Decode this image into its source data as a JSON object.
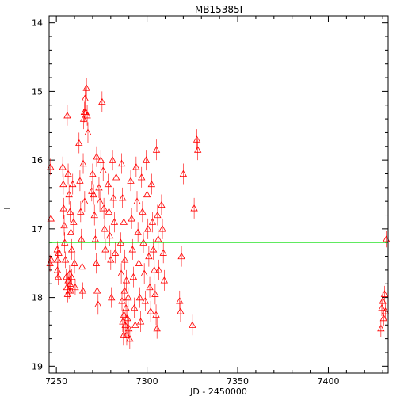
{
  "chart_data": {
    "type": "scatter",
    "title": "MB15385I",
    "xlabel": "JD - 2450000",
    "ylabel": "I",
    "xlim": [
      7246,
      7433
    ],
    "ylim": [
      19.1,
      13.9
    ],
    "y_inverted": true,
    "grid": false,
    "x_ticks": [
      7250,
      7300,
      7350,
      7400
    ],
    "y_ticks": [
      14,
      15,
      16,
      17,
      18,
      19
    ],
    "x_minor_step": 10,
    "y_minor_step": 0.2,
    "reference_line": {
      "y": 17.2,
      "color": "#00dd00"
    },
    "marker": "triangle-open",
    "point_color": "#ff0000",
    "series": [
      {
        "points": [
          [
            7246.5,
            17.5,
            0.12
          ],
          [
            7247.0,
            16.85,
            0.12
          ],
          [
            7246.8,
            16.1,
            0.12
          ],
          [
            7247.2,
            17.45,
            0.12
          ],
          [
            7250.5,
            17.3,
            0.12
          ],
          [
            7250.8,
            17.45,
            0.12
          ],
          [
            7251.0,
            17.7,
            0.12
          ],
          [
            7251.3,
            17.35,
            0.12
          ],
          [
            7250.6,
            17.6,
            0.12
          ],
          [
            7253.5,
            16.1,
            0.15
          ],
          [
            7253.8,
            16.35,
            0.15
          ],
          [
            7254.0,
            16.7,
            0.15
          ],
          [
            7254.3,
            16.95,
            0.15
          ],
          [
            7254.6,
            17.2,
            0.15
          ],
          [
            7255.0,
            17.45,
            0.12
          ],
          [
            7255.5,
            17.7,
            0.12
          ],
          [
            7255.8,
            17.85,
            0.12
          ],
          [
            7256.2,
            17.95,
            0.12
          ],
          [
            7256.5,
            17.75,
            0.12
          ],
          [
            7257.0,
            17.9,
            0.12
          ],
          [
            7257.3,
            17.65,
            0.12
          ],
          [
            7257.6,
            17.8,
            0.12
          ],
          [
            7258.0,
            17.9,
            0.12
          ],
          [
            7258.4,
            17.7,
            0.12
          ],
          [
            7256.0,
            15.35,
            0.15
          ],
          [
            7256.5,
            16.2,
            0.15
          ],
          [
            7257.0,
            16.5,
            0.15
          ],
          [
            7257.5,
            16.75,
            0.15
          ],
          [
            7258.0,
            17.05,
            0.15
          ],
          [
            7258.5,
            17.3,
            0.15
          ],
          [
            7259.0,
            16.35,
            0.15
          ],
          [
            7259.5,
            16.9,
            0.15
          ],
          [
            7260.0,
            17.5,
            0.15
          ],
          [
            7260.4,
            17.85,
            0.12
          ],
          [
            7262.5,
            15.75,
            0.15
          ],
          [
            7263.0,
            16.3,
            0.15
          ],
          [
            7263.4,
            16.75,
            0.15
          ],
          [
            7263.8,
            17.15,
            0.15
          ],
          [
            7264.2,
            17.55,
            0.15
          ],
          [
            7264.6,
            17.9,
            0.12
          ],
          [
            7265.0,
            15.4,
            0.15
          ],
          [
            7265.4,
            15.3,
            0.15
          ],
          [
            7265.8,
            15.1,
            0.15
          ],
          [
            7266.2,
            15.3,
            0.15
          ],
          [
            7266.6,
            14.95,
            0.15
          ],
          [
            7267.0,
            15.35,
            0.15
          ],
          [
            7267.4,
            15.6,
            0.15
          ],
          [
            7264.8,
            16.05,
            0.15
          ],
          [
            7265.6,
            16.6,
            0.15
          ],
          [
            7269.5,
            16.45,
            0.15
          ],
          [
            7270.0,
            16.2,
            0.15
          ],
          [
            7270.5,
            16.5,
            0.15
          ],
          [
            7271.0,
            16.8,
            0.15
          ],
          [
            7271.5,
            17.15,
            0.15
          ],
          [
            7272.0,
            17.5,
            0.15
          ],
          [
            7272.5,
            17.9,
            0.12
          ],
          [
            7273.0,
            18.1,
            0.15
          ],
          [
            7272.2,
            15.95,
            0.15
          ],
          [
            7273.5,
            16.4,
            0.15
          ],
          [
            7274.0,
            16.6,
            0.15
          ],
          [
            7274.5,
            16.0,
            0.15
          ],
          [
            7275.2,
            15.15,
            0.15
          ],
          [
            7275.8,
            16.15,
            0.15
          ],
          [
            7276.2,
            16.7,
            0.15
          ],
          [
            7276.6,
            17.0,
            0.15
          ],
          [
            7277.0,
            17.3,
            0.15
          ],
          [
            7278.5,
            16.35,
            0.15
          ],
          [
            7279.0,
            16.75,
            0.15
          ],
          [
            7279.5,
            17.1,
            0.15
          ],
          [
            7280.0,
            17.45,
            0.15
          ],
          [
            7280.4,
            18.0,
            0.15
          ],
          [
            7281.0,
            16.0,
            0.15
          ],
          [
            7281.5,
            16.55,
            0.15
          ],
          [
            7282.0,
            16.9,
            0.15
          ],
          [
            7282.5,
            17.35,
            0.15
          ],
          [
            7283.0,
            16.25,
            0.15
          ],
          [
            7285.5,
            17.2,
            0.15
          ],
          [
            7285.8,
            17.65,
            0.15
          ],
          [
            7286.2,
            18.05,
            0.15
          ],
          [
            7286.6,
            18.35,
            0.15
          ],
          [
            7287.0,
            18.55,
            0.15
          ],
          [
            7287.3,
            18.25,
            0.15
          ],
          [
            7287.6,
            17.9,
            0.15
          ],
          [
            7288.0,
            18.4,
            0.15
          ],
          [
            7288.4,
            18.15,
            0.15
          ],
          [
            7288.8,
            18.55,
            0.15
          ],
          [
            7289.2,
            18.3,
            0.15
          ],
          [
            7289.6,
            18.0,
            0.15
          ],
          [
            7290.0,
            18.45,
            0.15
          ],
          [
            7290.5,
            18.6,
            0.15
          ],
          [
            7286.0,
            16.05,
            0.15
          ],
          [
            7286.5,
            16.55,
            0.15
          ],
          [
            7287.2,
            16.9,
            0.15
          ],
          [
            7287.8,
            17.45,
            0.15
          ],
          [
            7288.6,
            17.75,
            0.15
          ],
          [
            7291.0,
            16.3,
            0.15
          ],
          [
            7291.5,
            16.85,
            0.15
          ],
          [
            7292.0,
            17.3,
            0.15
          ],
          [
            7292.5,
            17.7,
            0.15
          ],
          [
            7293.0,
            18.15,
            0.15
          ],
          [
            7293.5,
            18.4,
            0.15
          ],
          [
            7294.0,
            16.1,
            0.15
          ],
          [
            7294.5,
            16.6,
            0.15
          ],
          [
            7295.0,
            17.05,
            0.15
          ],
          [
            7295.5,
            17.5,
            0.15
          ],
          [
            7296.0,
            18.0,
            0.15
          ],
          [
            7296.5,
            18.35,
            0.15
          ],
          [
            7297.0,
            16.25,
            0.15
          ],
          [
            7297.5,
            16.75,
            0.15
          ],
          [
            7298.0,
            17.2,
            0.15
          ],
          [
            7298.5,
            17.65,
            0.15
          ],
          [
            7299.0,
            18.05,
            0.15
          ],
          [
            7299.5,
            16.0,
            0.15
          ],
          [
            7300.0,
            16.5,
            0.15
          ],
          [
            7300.5,
            17.0,
            0.15
          ],
          [
            7301.0,
            17.4,
            0.15
          ],
          [
            7301.5,
            17.85,
            0.15
          ],
          [
            7302.0,
            18.2,
            0.15
          ],
          [
            7302.5,
            16.35,
            0.15
          ],
          [
            7303.0,
            16.9,
            0.15
          ],
          [
            7303.5,
            17.3,
            0.15
          ],
          [
            7304.0,
            17.6,
            0.15
          ],
          [
            7304.5,
            17.95,
            0.15
          ],
          [
            7305.0,
            18.25,
            0.15
          ],
          [
            7305.5,
            18.45,
            0.15
          ],
          [
            7305.2,
            15.85,
            0.15
          ],
          [
            7305.8,
            16.8,
            0.15
          ],
          [
            7306.2,
            17.15,
            0.15
          ],
          [
            7306.6,
            17.6,
            0.15
          ],
          [
            7308.0,
            16.65,
            0.15
          ],
          [
            7308.5,
            17.0,
            0.15
          ],
          [
            7309.0,
            17.35,
            0.15
          ],
          [
            7309.5,
            17.75,
            0.15
          ],
          [
            7318.0,
            18.05,
            0.15
          ],
          [
            7318.5,
            18.2,
            0.15
          ],
          [
            7319.0,
            17.4,
            0.15
          ],
          [
            7320.0,
            16.2,
            0.15
          ],
          [
            7325.0,
            18.4,
            0.15
          ],
          [
            7326.0,
            16.7,
            0.15
          ],
          [
            7327.5,
            15.7,
            0.15
          ],
          [
            7328.0,
            15.85,
            0.15
          ],
          [
            7429.0,
            18.45,
            0.12
          ],
          [
            7429.5,
            18.15,
            0.12
          ],
          [
            7430.0,
            18.05,
            0.12
          ],
          [
            7430.5,
            18.3,
            0.12
          ],
          [
            7431.0,
            17.95,
            0.12
          ],
          [
            7431.5,
            18.2,
            0.12
          ],
          [
            7432.0,
            17.15,
            0.12
          ]
        ]
      }
    ]
  }
}
